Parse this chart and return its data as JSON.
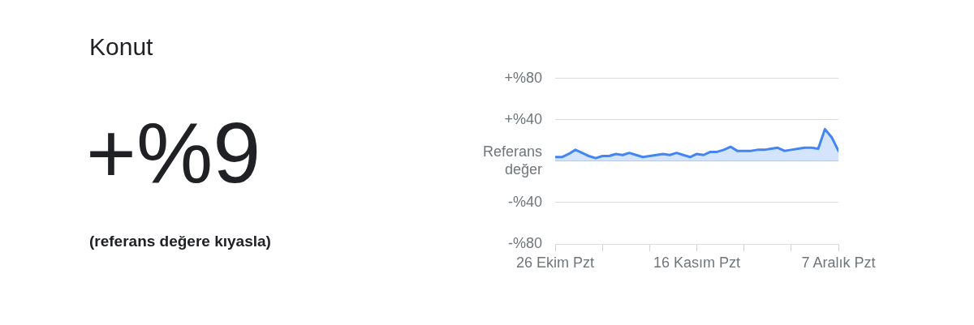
{
  "chart_data": {
    "type": "area",
    "title": "Konut",
    "annotations": [
      "+%9",
      "(referans değere kıyasla)"
    ],
    "x": [
      "--10-26",
      "--10-27",
      "--10-28",
      "--10-29",
      "--10-30",
      "--10-31",
      "--11-01",
      "--11-02",
      "--11-03",
      "--11-04",
      "--11-05",
      "--11-06",
      "--11-07",
      "--11-08",
      "--11-09",
      "--11-10",
      "--11-11",
      "--11-12",
      "--11-13",
      "--11-14",
      "--11-15",
      "--11-16",
      "--11-17",
      "--11-18",
      "--11-19",
      "--11-20",
      "--11-21",
      "--11-22",
      "--11-23",
      "--11-24",
      "--11-25",
      "--11-26",
      "--11-27",
      "--11-28",
      "--11-29",
      "--11-30",
      "--12-01",
      "--12-02",
      "--12-03",
      "--12-04",
      "--12-05",
      "--12-06",
      "--12-07"
    ],
    "series": [
      {
        "color": "#4285f4",
        "values": [
          4,
          4,
          7,
          11,
          8,
          5,
          3,
          5,
          5,
          7,
          6,
          8,
          6,
          4,
          5,
          6,
          7,
          6,
          8,
          6,
          4,
          7,
          6,
          9,
          9,
          11,
          14,
          10,
          10,
          10,
          11,
          11,
          12,
          13,
          10,
          11,
          12,
          13,
          13,
          12,
          31,
          23,
          10
        ]
      }
    ],
    "xlim": [
      "--10-26",
      "--12-07"
    ],
    "xticks": [
      {
        "value": "--10-26",
        "label": "26 Ekim Pzt"
      },
      {
        "value": "--11-02",
        "label": null
      },
      {
        "value": "--11-09",
        "label": null
      },
      {
        "value": "--11-16",
        "label": "16 Kasım Pzt"
      },
      {
        "value": "--11-23",
        "label": null
      },
      {
        "value": "--11-30",
        "label": null
      },
      {
        "value": "--12-07",
        "label": "7 Aralık Pzt"
      }
    ],
    "ylim": [
      -80,
      80
    ],
    "yticks": [
      {
        "value": -80,
        "label": "-%80"
      },
      {
        "value": -40,
        "label": "-%40"
      },
      {
        "value": 0,
        "label": "Referans değer"
      },
      {
        "value": 40,
        "label": "+%40"
      },
      {
        "value": 80,
        "label": "+%80"
      }
    ],
    "grid": "y",
    "marker": "none",
    "legend": false
  }
}
